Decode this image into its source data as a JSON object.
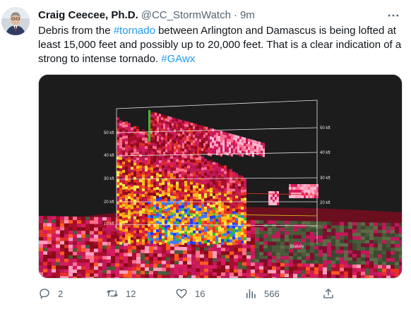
{
  "tweet": {
    "author": {
      "display_name": "Craig Ceecee, Ph.D.",
      "handle": "@CC_StormWatch",
      "separator": "·",
      "time": "9m"
    },
    "text": {
      "part1": "Debris from the ",
      "hashtag1": "#tornado",
      "part2": " between Arlington and Damascus is being lofted at least 15,000 feet and possibly up to 20,000 feet. That is a clear indication of a strong to intense tornado. ",
      "hashtag2": "#GAwx"
    },
    "media": {
      "left_axis_labels": [
        "50 kft",
        "40 kft",
        "30 kft",
        "20 kft",
        "10 kft"
      ],
      "right_axis_labels": [
        "50 kft",
        "40 kft",
        "30 kft",
        "20 kft"
      ],
      "place_label": "Blakely"
    },
    "actions": {
      "replies": "2",
      "retweets": "12",
      "likes": "16",
      "views": "566"
    }
  },
  "colors": {
    "text_primary": "#0f1419",
    "text_secondary": "#536471",
    "link": "#1d9bf0",
    "border": "#cfd9de"
  },
  "icons": [
    "avatar-photo",
    "more-icon",
    "reply-icon",
    "retweet-icon",
    "like-icon",
    "views-icon",
    "share-icon"
  ]
}
